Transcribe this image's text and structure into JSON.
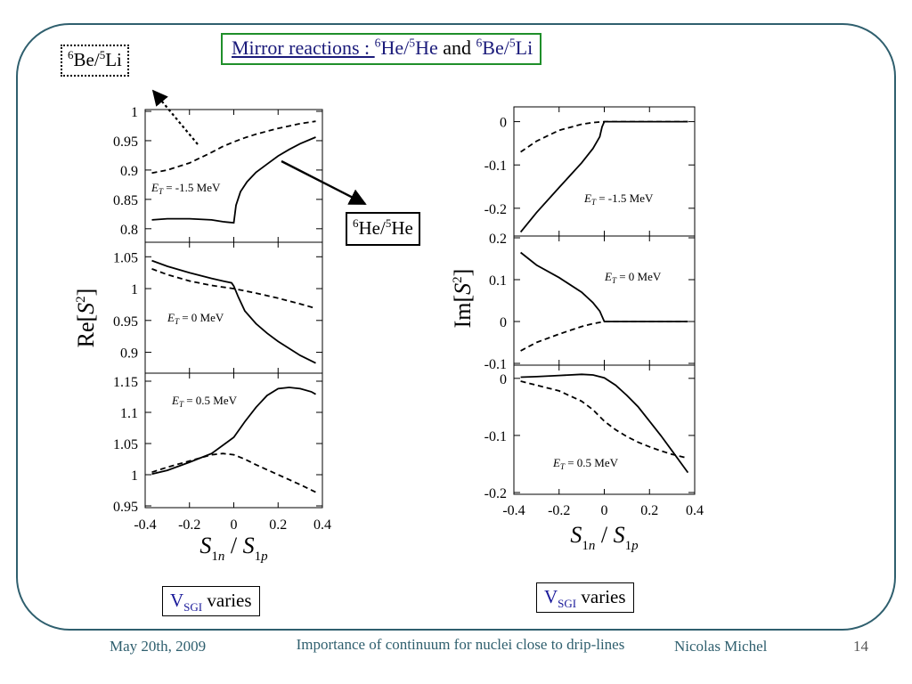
{
  "slide": {
    "title_prefix": "Mirror reactions : ",
    "title_iso1_mass": "6",
    "title_iso1_el": "He/",
    "title_iso2_mass": "5",
    "title_iso2_el": "He",
    "title_and": " and ",
    "title_iso3_mass": "6",
    "title_iso3_el": "Be/",
    "title_iso4_mass": "5",
    "title_iso4_el": "Li",
    "be_li_label": {
      "m1": "6",
      "e1": "Be/",
      "m2": "5",
      "e2": "Li"
    },
    "he_he_label": {
      "m1": "6",
      "e1": "He/",
      "m2": "5",
      "e2": "He"
    },
    "vsgi_left": {
      "v": "V",
      "sub": "SGI",
      "rest": " varies"
    },
    "vsgi_right": {
      "v": "V",
      "sub": "SGI",
      "rest": " varies"
    }
  },
  "footer": {
    "date": "May 20th, 2009",
    "title": "Importance of continuum for nuclei close to drip-lines",
    "author": "Nicolas Michel",
    "page": "14"
  },
  "chart_data": [
    {
      "type": "line",
      "title": "",
      "xlabel": "S1n / S1p",
      "ylabel": "Re[S²]",
      "panels": [
        {
          "annotation": "E_T = -1.5 MeV",
          "ylim": [
            0.78,
            1.0
          ],
          "yticks": [
            "0.8",
            "0.85",
            "0.9",
            "0.95",
            "1"
          ],
          "series": [
            {
              "style": "solid",
              "x": [
                -0.37,
                -0.3,
                -0.2,
                -0.1,
                -0.05,
                0.0,
                0.01,
                0.03,
                0.06,
                0.1,
                0.15,
                0.2,
                0.25,
                0.3,
                0.37
              ],
              "y": [
                0.815,
                0.817,
                0.817,
                0.815,
                0.812,
                0.81,
                0.84,
                0.863,
                0.88,
                0.896,
                0.91,
                0.924,
                0.935,
                0.945,
                0.956
              ]
            },
            {
              "style": "dashed",
              "x": [
                -0.37,
                -0.3,
                -0.2,
                -0.1,
                -0.05,
                0.0,
                0.05,
                0.1,
                0.15,
                0.2,
                0.25,
                0.3,
                0.37
              ],
              "y": [
                0.895,
                0.9,
                0.912,
                0.93,
                0.94,
                0.948,
                0.955,
                0.961,
                0.966,
                0.971,
                0.975,
                0.979,
                0.983
              ]
            }
          ]
        },
        {
          "annotation": "E_T = 0 MeV",
          "ylim": [
            0.87,
            1.07
          ],
          "yticks": [
            "0.9",
            "0.95",
            "1",
            "1.05"
          ],
          "series": [
            {
              "style": "solid",
              "x": [
                -0.37,
                -0.3,
                -0.2,
                -0.1,
                -0.05,
                -0.01,
                0.0,
                0.02,
                0.05,
                0.1,
                0.15,
                0.2,
                0.25,
                0.3,
                0.37
              ],
              "y": [
                1.044,
                1.035,
                1.025,
                1.016,
                1.012,
                1.009,
                1.004,
                0.987,
                0.965,
                0.945,
                0.93,
                0.917,
                0.906,
                0.895,
                0.883
              ]
            },
            {
              "style": "dashed",
              "x": [
                -0.37,
                -0.3,
                -0.2,
                -0.1,
                0.0,
                0.1,
                0.2,
                0.3,
                0.37
              ],
              "y": [
                1.031,
                1.022,
                1.012,
                1.005,
                1.0,
                0.993,
                0.985,
                0.976,
                0.969
              ]
            }
          ]
        },
        {
          "annotation": "E_T = 0.5 MeV",
          "ylim": [
            0.95,
            1.16
          ],
          "yticks": [
            "0.95",
            "1",
            "1.05",
            "1.1",
            "1.15"
          ],
          "series": [
            {
              "style": "solid",
              "x": [
                -0.37,
                -0.3,
                -0.2,
                -0.1,
                0.0,
                0.05,
                0.1,
                0.15,
                0.2,
                0.25,
                0.3,
                0.35,
                0.37
              ],
              "y": [
                1.001,
                1.007,
                1.02,
                1.034,
                1.06,
                1.085,
                1.108,
                1.127,
                1.138,
                1.14,
                1.138,
                1.133,
                1.129
              ]
            },
            {
              "style": "dashed",
              "x": [
                -0.37,
                -0.3,
                -0.2,
                -0.1,
                -0.05,
                0.0,
                0.05,
                0.1,
                0.15,
                0.2,
                0.25,
                0.3,
                0.37
              ],
              "y": [
                1.004,
                1.012,
                1.022,
                1.032,
                1.034,
                1.032,
                1.025,
                1.016,
                1.008,
                1.0,
                0.992,
                0.984,
                0.972
              ]
            }
          ]
        }
      ],
      "xlim": [
        -0.4,
        0.4
      ],
      "xticks": [
        "-0.4",
        "-0.2",
        "0",
        "0.2",
        "0.4"
      ]
    },
    {
      "type": "line",
      "title": "",
      "xlabel": "S1n / S1p",
      "ylabel": "Im[S²]",
      "panels": [
        {
          "annotation": "E_T = -1.5 MeV",
          "ylim": [
            -0.26,
            0.03
          ],
          "yticks": [
            "-0.2",
            "-0.1",
            "0"
          ],
          "series": [
            {
              "style": "solid",
              "x": [
                -0.37,
                -0.3,
                -0.2,
                -0.1,
                -0.05,
                -0.02,
                -0.01,
                0.0,
                0.1,
                0.2,
                0.3,
                0.37
              ],
              "y": [
                -0.255,
                -0.21,
                -0.152,
                -0.095,
                -0.062,
                -0.035,
                -0.012,
                0.0,
                0.0,
                0.0,
                0.0,
                0.0
              ]
            },
            {
              "style": "dashed",
              "x": [
                -0.37,
                -0.3,
                -0.2,
                -0.1,
                -0.05,
                0.0,
                0.1,
                0.2,
                0.3,
                0.37
              ],
              "y": [
                -0.07,
                -0.045,
                -0.02,
                -0.006,
                -0.002,
                0.0,
                0.0,
                0.0,
                0.0,
                0.0
              ]
            }
          ]
        },
        {
          "annotation": "E_T = 0 MeV",
          "ylim": [
            -0.1,
            0.2
          ],
          "yticks": [
            "-0.1",
            "0",
            "0.1",
            "0.2"
          ],
          "series": [
            {
              "style": "solid",
              "x": [
                -0.37,
                -0.3,
                -0.2,
                -0.1,
                -0.05,
                -0.02,
                0.0,
                0.1,
                0.2,
                0.3,
                0.37
              ],
              "y": [
                0.165,
                0.135,
                0.105,
                0.07,
                0.045,
                0.025,
                0.0,
                0.0,
                0.0,
                0.0,
                0.0
              ]
            },
            {
              "style": "dashed",
              "x": [
                -0.37,
                -0.3,
                -0.2,
                -0.1,
                -0.05,
                0.0,
                0.1,
                0.2,
                0.3,
                0.37
              ],
              "y": [
                -0.07,
                -0.05,
                -0.03,
                -0.012,
                -0.005,
                0.0,
                0.0,
                0.0,
                0.0,
                0.0
              ]
            }
          ]
        },
        {
          "annotation": "E_T = 0.5 MeV",
          "ylim": [
            -0.2,
            0.02
          ],
          "yticks": [
            "-0.2",
            "-0.1",
            "0"
          ],
          "series": [
            {
              "style": "solid",
              "x": [
                -0.37,
                -0.3,
                -0.2,
                -0.1,
                -0.05,
                0.0,
                0.05,
                0.1,
                0.15,
                0.2,
                0.25,
                0.3,
                0.37
              ],
              "y": [
                0.002,
                0.003,
                0.005,
                0.007,
                0.006,
                0.001,
                -0.012,
                -0.03,
                -0.05,
                -0.075,
                -0.1,
                -0.127,
                -0.165
              ]
            },
            {
              "style": "dashed",
              "x": [
                -0.37,
                -0.3,
                -0.2,
                -0.1,
                -0.05,
                0.0,
                0.05,
                0.1,
                0.15,
                0.2,
                0.25,
                0.3,
                0.37
              ],
              "y": [
                -0.005,
                -0.012,
                -0.022,
                -0.04,
                -0.055,
                -0.075,
                -0.09,
                -0.102,
                -0.112,
                -0.12,
                -0.127,
                -0.133,
                -0.14
              ]
            }
          ]
        }
      ],
      "xlim": [
        -0.4,
        0.4
      ],
      "xticks": [
        "-0.4",
        "-0.2",
        "0",
        "0.2",
        "0.4"
      ]
    }
  ]
}
